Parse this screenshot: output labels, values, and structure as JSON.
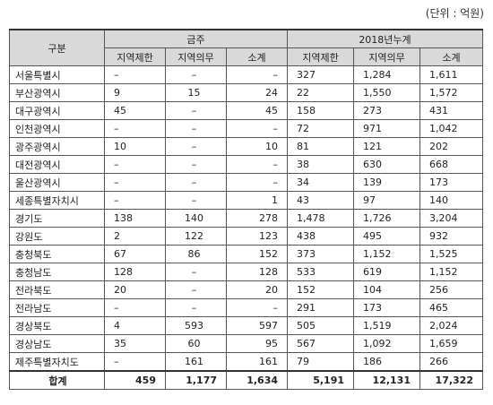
{
  "unit_note": "(단위 : 억원)",
  "headers": {
    "category": "구분",
    "group_current": "금주",
    "group_cumulative": "2018년누계",
    "sub": [
      "지역제한",
      "지역의무",
      "소계",
      "지역제한",
      "지역의무",
      "소계"
    ]
  },
  "rows": [
    {
      "region": "서울특별시",
      "values": [
        "–",
        "–",
        "–",
        "327",
        "1,284",
        "1,611"
      ]
    },
    {
      "region": "부산광역시",
      "values": [
        "9",
        "15",
        "24",
        "22",
        "1,550",
        "1,572"
      ]
    },
    {
      "region": "대구광역시",
      "values": [
        "45",
        "–",
        "45",
        "158",
        "273",
        "431"
      ]
    },
    {
      "region": "인천광역시",
      "values": [
        "–",
        "–",
        "–",
        "72",
        "971",
        "1,042"
      ]
    },
    {
      "region": "광주광역시",
      "values": [
        "10",
        "–",
        "10",
        "81",
        "121",
        "202"
      ]
    },
    {
      "region": "대전광역시",
      "values": [
        "–",
        "–",
        "–",
        "38",
        "630",
        "668"
      ]
    },
    {
      "region": "울산광역시",
      "values": [
        "–",
        "–",
        "–",
        "34",
        "139",
        "173"
      ]
    },
    {
      "region": "세종특별자치시",
      "values": [
        "–",
        "–",
        "1",
        "43",
        "97",
        "140"
      ]
    },
    {
      "region": "경기도",
      "values": [
        "138",
        "140",
        "278",
        "1,478",
        "1,726",
        "3,204"
      ]
    },
    {
      "region": "강원도",
      "values": [
        "2",
        "122",
        "123",
        "438",
        "495",
        "932"
      ]
    },
    {
      "region": "충청북도",
      "values": [
        "67",
        "86",
        "152",
        "373",
        "1,152",
        "1,525"
      ]
    },
    {
      "region": "충청남도",
      "values": [
        "128",
        "–",
        "128",
        "533",
        "619",
        "1,152"
      ]
    },
    {
      "region": "전라북도",
      "values": [
        "20",
        "–",
        "20",
        "152",
        "104",
        "256"
      ]
    },
    {
      "region": "전라남도",
      "values": [
        "–",
        "–",
        "–",
        "291",
        "173",
        "465"
      ]
    },
    {
      "region": "경상북도",
      "values": [
        "4",
        "593",
        "597",
        "505",
        "1,519",
        "2,024"
      ]
    },
    {
      "region": "경상남도",
      "values": [
        "35",
        "60",
        "95",
        "567",
        "1,092",
        "1,659"
      ]
    },
    {
      "region": "제주특별자치도",
      "values": [
        "–",
        "161",
        "161",
        "79",
        "186",
        "266"
      ]
    }
  ],
  "total": {
    "label": "합계",
    "values": [
      "459",
      "1,177",
      "1,634",
      "5,191",
      "12,131",
      "17,322"
    ]
  }
}
